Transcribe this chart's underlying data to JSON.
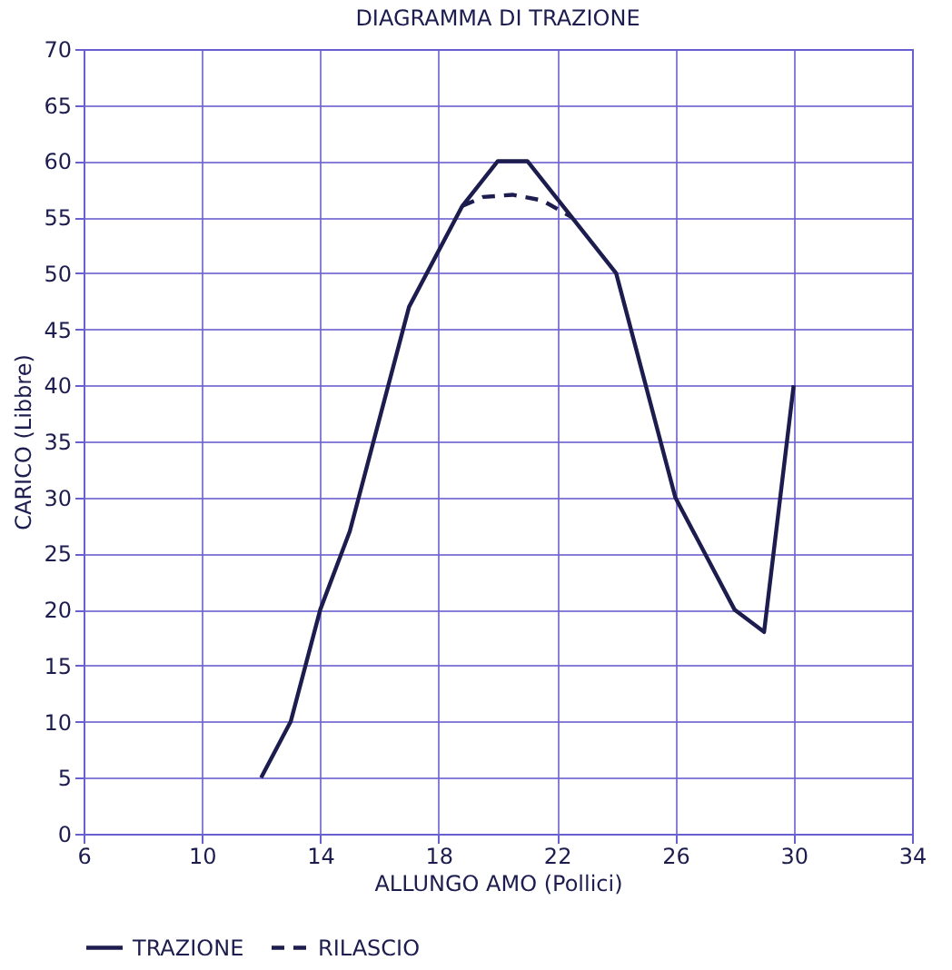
{
  "chart_data": {
    "type": "line",
    "title": "DIAGRAMMA DI TRAZIONE",
    "xlabel": "ALLUNGO AMO (Pollici)",
    "ylabel": "CARICO (Libbre)",
    "xlim": [
      6,
      34
    ],
    "xticks": [
      6,
      10,
      14,
      18,
      22,
      26,
      30,
      34
    ],
    "ylim": [
      0,
      70
    ],
    "yticks": [
      0,
      5,
      10,
      15,
      20,
      25,
      30,
      35,
      40,
      45,
      50,
      55,
      60,
      65,
      70
    ],
    "grid": true,
    "legend": "bottom",
    "marker": "none",
    "series": [
      {
        "name": "TRAZIONE",
        "color": "#1c1c4e",
        "line_style": "solid",
        "x": [
          12,
          13,
          14,
          15,
          17,
          18.8,
          19.4,
          20,
          21,
          24,
          26,
          28,
          29,
          30
        ],
        "values": [
          5,
          10,
          20,
          27,
          47,
          56,
          58,
          60,
          60,
          50,
          30,
          20,
          18,
          40
        ]
      },
      {
        "name": "RILASCIO",
        "color": "#1c1c4e",
        "line_style": "dashed",
        "x": [
          18.8,
          19.5,
          20.5,
          21.5,
          22.5
        ],
        "values": [
          56,
          56.8,
          57,
          56.5,
          55
        ]
      }
    ]
  }
}
